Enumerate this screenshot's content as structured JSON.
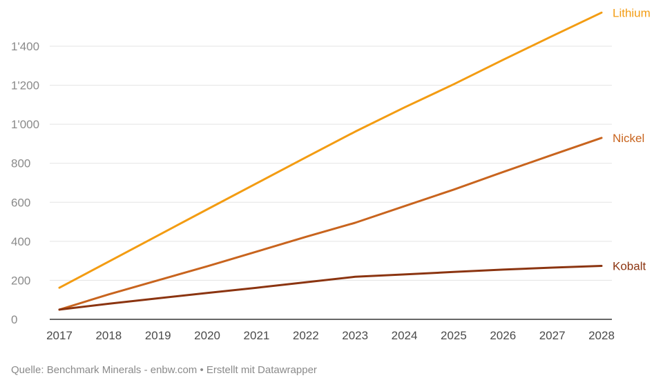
{
  "chart_data": {
    "type": "line",
    "x": [
      2017,
      2018,
      2019,
      2020,
      2021,
      2022,
      2023,
      2024,
      2025,
      2026,
      2027,
      2028
    ],
    "x_tick_labels": [
      "2017",
      "2018",
      "2019",
      "2020",
      "2021",
      "2022",
      "2023",
      "2024",
      "2025",
      "2026",
      "2027",
      "2028"
    ],
    "y_ticks": [
      0,
      200,
      400,
      600,
      800,
      1000,
      1200,
      1400
    ],
    "y_tick_labels": [
      "0",
      "200",
      "400",
      "600",
      "800",
      "1'000",
      "1'200",
      "1'400"
    ],
    "ylim": [
      0,
      1400
    ],
    "xlim": [
      2017,
      2028
    ],
    "grid": true,
    "series": [
      {
        "name": "Lithium",
        "color": "#f39c12",
        "values": [
          162,
          296,
          430,
          564,
          697,
          830,
          962,
          1086,
          1205,
          1330,
          1452,
          1572
        ]
      },
      {
        "name": "Nickel",
        "color": "#c8641e",
        "values": [
          50,
          128,
          200,
          272,
          347,
          423,
          495,
          580,
          665,
          755,
          843,
          930
        ]
      },
      {
        "name": "Kobalt",
        "color": "#8b3410",
        "values": [
          50,
          80,
          108,
          135,
          162,
          190,
          218,
          230,
          243,
          255,
          265,
          274
        ]
      }
    ]
  },
  "source": "Quelle: Benchmark Minerals - enbw.com • Erstellt mit Datawrapper"
}
